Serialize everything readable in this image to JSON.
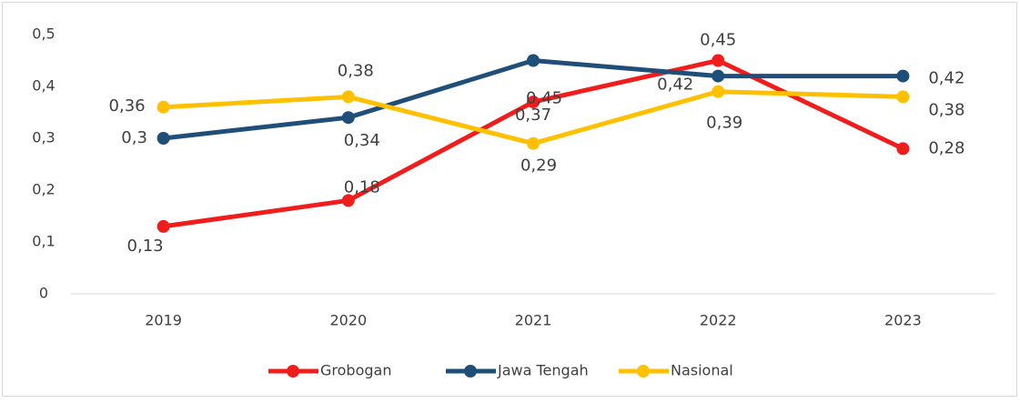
{
  "chart_data": {
    "type": "line",
    "categories": [
      "2019",
      "2020",
      "2021",
      "2022",
      "2023"
    ],
    "series": [
      {
        "name": "Grobogan",
        "color": "#f01d1d",
        "values": [
          0.13,
          0.18,
          0.37,
          0.45,
          0.28
        ],
        "value_labels": [
          "0,13",
          "0,18",
          "0,37",
          "0,45",
          "0,28"
        ]
      },
      {
        "name": "Jawa Tengah",
        "color": "#1f4e79",
        "values": [
          0.3,
          0.34,
          0.45,
          0.42,
          0.42
        ],
        "value_labels": [
          "0,3",
          "0,34",
          "0,45",
          "0,42",
          "0,42"
        ]
      },
      {
        "name": "Nasional",
        "color": "#ffc000",
        "values": [
          0.36,
          0.38,
          0.29,
          0.39,
          0.38
        ],
        "value_labels": [
          "0,36",
          "0,38",
          "0,29",
          "0,39",
          "0,38"
        ]
      }
    ],
    "ylim": [
      0,
      0.5
    ],
    "yticks": [
      0,
      {
        "value": 0.1,
        "label": "0,1"
      },
      {
        "value": 0.2,
        "label": "0,2"
      },
      {
        "value": 0.3,
        "label": "0,3"
      },
      {
        "value": 0.4,
        "label": "0,4"
      },
      {
        "value": 0.5,
        "label": "0,5"
      }
    ],
    "legend": "bottom"
  }
}
